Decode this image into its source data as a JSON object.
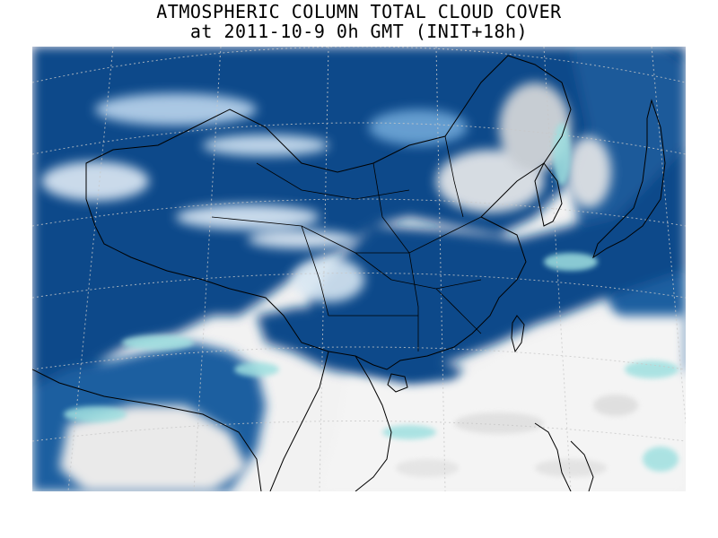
{
  "title": {
    "line1": "ATMOSPHERIC COLUMN TOTAL CLOUD COVER",
    "line2": "at 2011-10-9 0h GMT (INIT+18h)"
  },
  "map": {
    "variable": "total cloud cover",
    "colors": {
      "overcast": "#0b4a8a",
      "high": "#2f6fb0",
      "medium": "#6fa7d8",
      "low_cyan": "#9fe0e0",
      "clear": "#f4f4f4",
      "clear_grey": "#d6d6d6",
      "coastline": "#000000",
      "gridline": "#c8c8c8"
    },
    "features": [
      "coastline",
      "country-borders",
      "province-borders",
      "lat-lon-graticule"
    ]
  }
}
